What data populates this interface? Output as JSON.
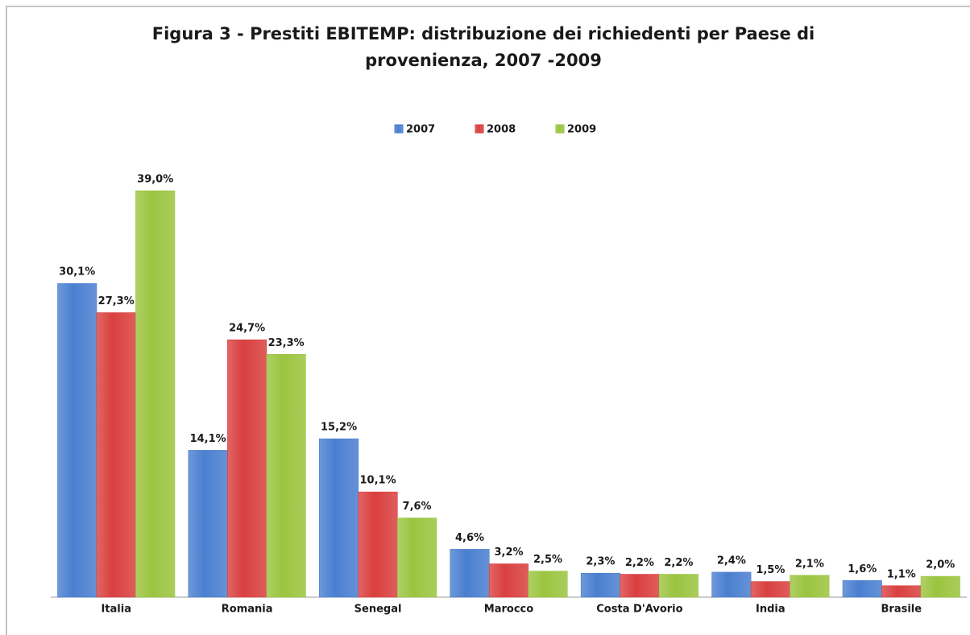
{
  "chart_data": {
    "type": "bar",
    "title": "Figura 3 - Prestiti EBITEMP: distribuzione dei richiedenti per Paese di provenienza, 2007 -2009",
    "categories": [
      "Italia",
      "Romania",
      "Senegal",
      "Marocco",
      "Costa D'Avorio",
      "India",
      "Brasile"
    ],
    "series": [
      {
        "name": "2007",
        "color": "#4a7fd0",
        "values": [
          30.1,
          14.1,
          15.2,
          4.6,
          2.3,
          2.4,
          1.6
        ],
        "value_labels": [
          "30,1%",
          "14,1%",
          "15,2%",
          "4,6%",
          "2,3%",
          "2,4%",
          "1,6%"
        ]
      },
      {
        "name": "2008",
        "color": "#d9403f",
        "values": [
          27.3,
          24.7,
          10.1,
          3.2,
          2.2,
          1.5,
          1.1
        ],
        "value_labels": [
          "27,3%",
          "24,7%",
          "10,1%",
          "3,2%",
          "2,2%",
          "1,5%",
          "1,1%"
        ]
      },
      {
        "name": "2009",
        "color": "#9bc43f",
        "values": [
          39,
          23.3,
          7.6,
          2.5,
          2.2,
          2.1,
          2
        ],
        "value_labels": [
          "39,0%",
          "23,3%",
          "7,6%",
          "2,5%",
          "2,2%",
          "2,1%",
          "2,0%"
        ]
      }
    ],
    "legend": "top"
  }
}
